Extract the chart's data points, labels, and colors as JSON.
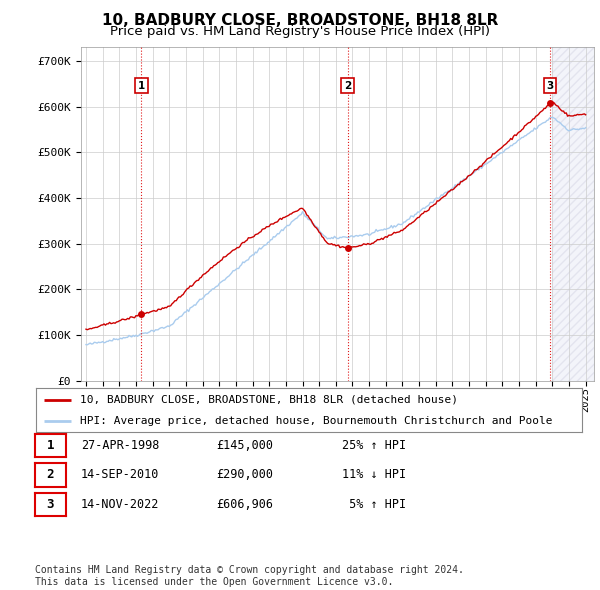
{
  "title": "10, BADBURY CLOSE, BROADSTONE, BH18 8LR",
  "subtitle": "Price paid vs. HM Land Registry's House Price Index (HPI)",
  "ylim": [
    0,
    730000
  ],
  "yticks": [
    0,
    100000,
    200000,
    300000,
    400000,
    500000,
    600000,
    700000
  ],
  "ytick_labels": [
    "£0",
    "£100K",
    "£200K",
    "£300K",
    "£400K",
    "£500K",
    "£600K",
    "£700K"
  ],
  "background_color": "#ffffff",
  "plot_bg_color": "#ffffff",
  "grid_color": "#cccccc",
  "hatch_color": "#e8e8f0",
  "sale_points": [
    {
      "label": "1",
      "date_num": 1998.32,
      "price": 145000
    },
    {
      "label": "2",
      "date_num": 2010.71,
      "price": 290000
    },
    {
      "label": "3",
      "date_num": 2022.87,
      "price": 606906
    }
  ],
  "sale_vline_color": "#dd0000",
  "sale_marker_color": "#cc0000",
  "sale_label_border": "#cc0000",
  "hpi_line_color": "#aaccee",
  "price_line_color": "#cc0000",
  "xlim_left": 1994.7,
  "xlim_right": 2025.5,
  "hatch_start": 2023.0,
  "legend_entries": [
    "10, BADBURY CLOSE, BROADSTONE, BH18 8LR (detached house)",
    "HPI: Average price, detached house, Bournemouth Christchurch and Poole"
  ],
  "table_rows": [
    [
      "1",
      "27-APR-1998",
      "£145,000",
      "25% ↑ HPI"
    ],
    [
      "2",
      "14-SEP-2010",
      "£290,000",
      "11% ↓ HPI"
    ],
    [
      "3",
      "14-NOV-2022",
      "£606,906",
      " 5% ↑ HPI"
    ]
  ],
  "footer": "Contains HM Land Registry data © Crown copyright and database right 2024.\nThis data is licensed under the Open Government Licence v3.0."
}
